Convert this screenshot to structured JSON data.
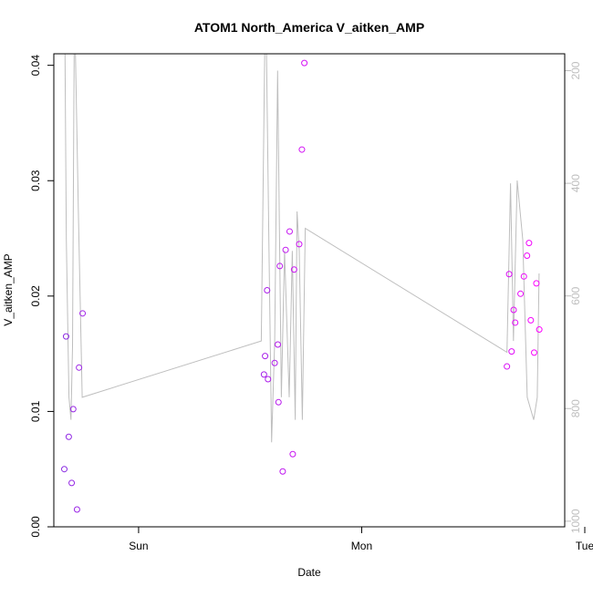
{
  "chart_data": {
    "type": "scatter",
    "title": "ATOM1 North_America V_aitken_AMP",
    "xlabel": "Date",
    "ylabel": "V_aitken_AMP",
    "x_ticks": [
      "Sun",
      "Mon",
      "Tue"
    ],
    "x_tick_values": [
      0,
      1,
      2
    ],
    "xlim": [
      -0.38,
      1.91
    ],
    "ylim": [
      0,
      0.041
    ],
    "y_ticks": [
      0.0,
      0.01,
      0.02,
      0.03,
      0.04
    ],
    "y_tick_labels": [
      "0.00",
      "0.01",
      "0.02",
      "0.03",
      "0.04"
    ],
    "right_axis": {
      "ticks": [
        200,
        400,
        600,
        800,
        1000
      ],
      "tick_labels": [
        "200",
        "400",
        "600",
        "800",
        "1000"
      ],
      "lim_top": 170,
      "lim_bottom": 1010,
      "color": "#bebebe"
    },
    "grid": false,
    "legend": "none",
    "series": [
      {
        "type": "scatter",
        "color_start": "#8a2be2",
        "color_end": "#ff00ff",
        "points": [
          {
            "x": -0.333,
            "y": 0.005
          },
          {
            "x": -0.325,
            "y": 0.0165
          },
          {
            "x": -0.313,
            "y": 0.0078
          },
          {
            "x": -0.3,
            "y": 0.0038
          },
          {
            "x": -0.293,
            "y": 0.0102
          },
          {
            "x": -0.276,
            "y": 0.0015
          },
          {
            "x": -0.267,
            "y": 0.0138
          },
          {
            "x": -0.251,
            "y": 0.0185
          },
          {
            "x": 0.562,
            "y": 0.0132
          },
          {
            "x": 0.567,
            "y": 0.0148
          },
          {
            "x": 0.576,
            "y": 0.0205
          },
          {
            "x": 0.58,
            "y": 0.0128
          },
          {
            "x": 0.61,
            "y": 0.0142
          },
          {
            "x": 0.624,
            "y": 0.0158
          },
          {
            "x": 0.627,
            "y": 0.0108
          },
          {
            "x": 0.633,
            "y": 0.0226
          },
          {
            "x": 0.646,
            "y": 0.0048
          },
          {
            "x": 0.659,
            "y": 0.024
          },
          {
            "x": 0.677,
            "y": 0.0256
          },
          {
            "x": 0.691,
            "y": 0.0063
          },
          {
            "x": 0.697,
            "y": 0.0223
          },
          {
            "x": 0.72,
            "y": 0.0245
          },
          {
            "x": 0.732,
            "y": 0.0327
          },
          {
            "x": 0.743,
            "y": 0.0402
          },
          {
            "x": 1.651,
            "y": 0.0139
          },
          {
            "x": 1.661,
            "y": 0.0219
          },
          {
            "x": 1.672,
            "y": 0.0152
          },
          {
            "x": 1.681,
            "y": 0.0188
          },
          {
            "x": 1.688,
            "y": 0.0177
          },
          {
            "x": 1.712,
            "y": 0.0202
          },
          {
            "x": 1.727,
            "y": 0.0217
          },
          {
            "x": 1.741,
            "y": 0.0235
          },
          {
            "x": 1.75,
            "y": 0.0246
          },
          {
            "x": 1.758,
            "y": 0.0179
          },
          {
            "x": 1.773,
            "y": 0.0151
          },
          {
            "x": 1.783,
            "y": 0.0211
          },
          {
            "x": 1.796,
            "y": 0.0171
          }
        ]
      },
      {
        "type": "line",
        "axis": "right",
        "color": "#bebebe",
        "points": [
          {
            "x": -0.332,
            "y": 40
          },
          {
            "x": -0.324,
            "y": 500
          },
          {
            "x": -0.312,
            "y": 780
          },
          {
            "x": -0.303,
            "y": 820
          },
          {
            "x": -0.296,
            "y": 690
          },
          {
            "x": -0.287,
            "y": 40
          },
          {
            "x": -0.283,
            "y": 170
          },
          {
            "x": -0.27,
            "y": 450
          },
          {
            "x": -0.253,
            "y": 780
          },
          {
            "x": 0.55,
            "y": 680
          },
          {
            "x": 0.569,
            "y": 40
          },
          {
            "x": 0.584,
            "y": 500
          },
          {
            "x": 0.596,
            "y": 860
          },
          {
            "x": 0.61,
            "y": 680
          },
          {
            "x": 0.623,
            "y": 200
          },
          {
            "x": 0.64,
            "y": 780
          },
          {
            "x": 0.654,
            "y": 520
          },
          {
            "x": 0.675,
            "y": 780
          },
          {
            "x": 0.689,
            "y": 520
          },
          {
            "x": 0.702,
            "y": 820
          },
          {
            "x": 0.71,
            "y": 450
          },
          {
            "x": 0.72,
            "y": 520
          },
          {
            "x": 0.734,
            "y": 820
          },
          {
            "x": 0.747,
            "y": 480
          },
          {
            "x": 1.651,
            "y": 700
          },
          {
            "x": 1.667,
            "y": 400
          },
          {
            "x": 1.68,
            "y": 680
          },
          {
            "x": 1.697,
            "y": 395
          },
          {
            "x": 1.722,
            "y": 500
          },
          {
            "x": 1.742,
            "y": 780
          },
          {
            "x": 1.771,
            "y": 820
          },
          {
            "x": 1.787,
            "y": 780
          },
          {
            "x": 1.795,
            "y": 560
          }
        ]
      }
    ]
  }
}
